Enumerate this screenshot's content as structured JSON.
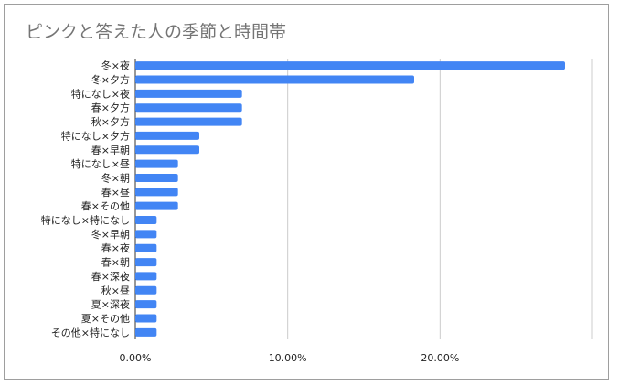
{
  "chart_data": {
    "type": "bar",
    "orientation": "horizontal",
    "title": "ピンクと答えた人の季節と時間帯",
    "xlabel": "",
    "ylabel": "",
    "categories": [
      "冬×夜",
      "冬×夕方",
      "特になし×夜",
      "春×夕方",
      "秋×夕方",
      "特になし×夕方",
      "春×早朝",
      "特になし×昼",
      "冬×朝",
      "春×昼",
      "春×その他",
      "特になし×特になし",
      "冬×早朝",
      "春×夜",
      "春×朝",
      "春×深夜",
      "秋×昼",
      "夏×深夜",
      "夏×その他",
      "その他×特になし"
    ],
    "series": [
      {
        "values": [
          28.2,
          18.3,
          7.0,
          7.0,
          7.0,
          4.2,
          4.2,
          2.8,
          2.8,
          2.8,
          2.8,
          1.4,
          1.4,
          1.4,
          1.4,
          1.4,
          1.4,
          1.4,
          1.4,
          1.4
        ]
      }
    ],
    "xlim": [
      0,
      30
    ],
    "xticks": [
      "0.00%",
      "10.00%",
      "20.00%"
    ],
    "xtick_values": [
      0,
      10,
      20
    ],
    "grid": true,
    "legend": "none",
    "bar_color": "#4285f4",
    "grid_color": "#cccccc"
  }
}
